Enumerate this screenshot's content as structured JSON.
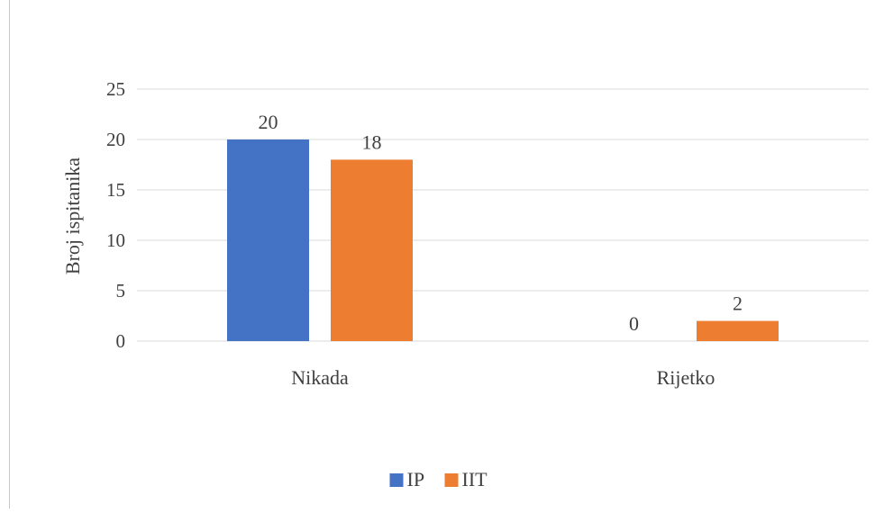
{
  "chart_data": {
    "type": "bar",
    "title": "",
    "xlabel": "",
    "ylabel": "Broj ispitanika",
    "categories": [
      "Nikada",
      "Rijetko"
    ],
    "series": [
      {
        "name": "IP",
        "values": [
          20,
          0
        ],
        "color": "#4472C4"
      },
      {
        "name": "IIT",
        "values": [
          18,
          2
        ],
        "color": "#ED7D31"
      }
    ],
    "ylim": [
      0,
      25
    ],
    "yticks": [
      0,
      5,
      10,
      15,
      20,
      25
    ],
    "grid": true,
    "legend_position": "bottom",
    "data_labels": true,
    "gridline_color": "#d9d9d9"
  }
}
